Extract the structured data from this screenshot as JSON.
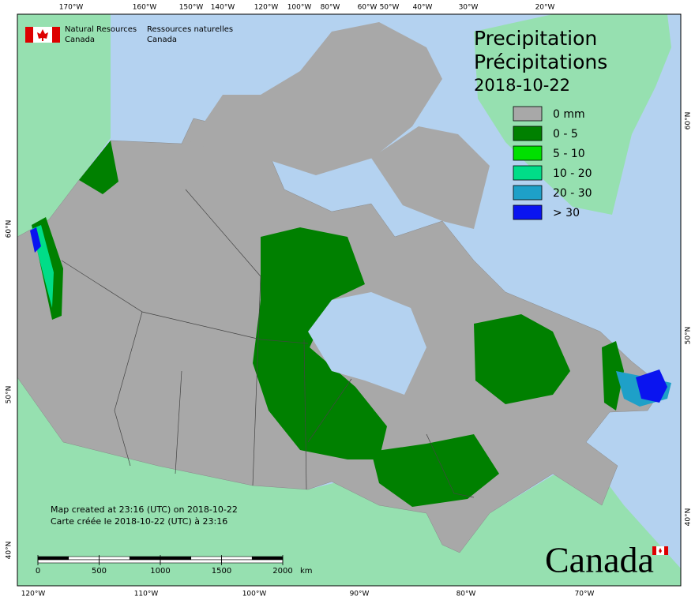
{
  "header": {
    "org_en": [
      "Natural Resources",
      "Canada"
    ],
    "org_fr": [
      "Ressources naturelles",
      "Canada"
    ]
  },
  "title": {
    "en": "Precipitation",
    "fr": "Précipitations",
    "date": "2018-10-22"
  },
  "legend": [
    {
      "label": "0 mm",
      "color": "#a8a8a8"
    },
    {
      "label": "0 - 5",
      "color": "#008000"
    },
    {
      "label": "5 - 10",
      "color": "#00e000"
    },
    {
      "label": "10 - 20",
      "color": "#00dd88"
    },
    {
      "label": "20 - 30",
      "color": "#1ea0c8"
    },
    {
      "label": "> 30",
      "color": "#0a14f0"
    }
  ],
  "graticule": {
    "top": [
      "170°W",
      "160°W",
      "150°W",
      "140°W",
      "120°W",
      "100°W",
      "80°W",
      "60°W",
      "50°W",
      "40°W",
      "30°W",
      "20°W"
    ],
    "bottom": [
      "120°W",
      "110°W",
      "100°W",
      "90°W",
      "80°W",
      "70°W"
    ],
    "left": [
      "60°N",
      "50°N",
      "40°N"
    ],
    "right": [
      "60°N",
      "50°N",
      "40°N"
    ]
  },
  "footer": {
    "created_en": "Map created at 23:16 (UTC) on 2018-10-22",
    "created_fr": "Carte créée le 2018-10-22 (UTC) à 23:16"
  },
  "scale_bar": {
    "ticks": [
      0,
      500,
      1000,
      1500,
      2000
    ],
    "unit": "km"
  },
  "wordmark": "Canada"
}
